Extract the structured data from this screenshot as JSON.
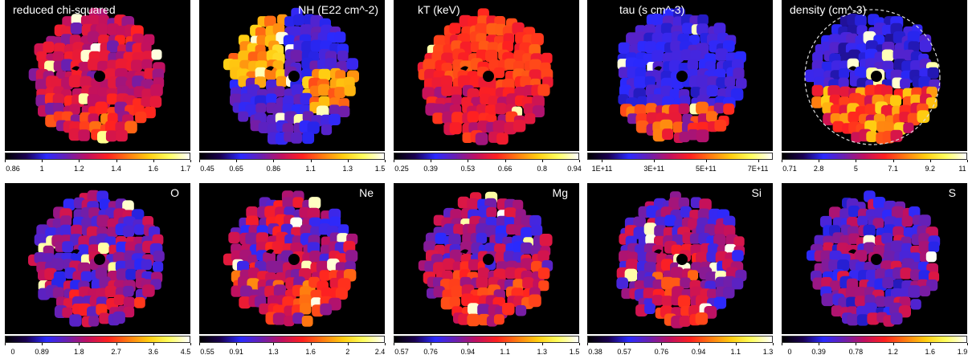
{
  "chart_data": {
    "type": "heatmap",
    "panels": [
      {
        "title": "reduced chi-squared",
        "title_align": "left",
        "ticks": [
          "0.86",
          "1",
          "1.2",
          "1.4",
          "1.6",
          "1.7"
        ],
        "profile": "chi",
        "seed": 11
      },
      {
        "title": "NH (E22 cm^-2)",
        "title_align": "right",
        "ticks": [
          "0.45",
          "0.65",
          "0.86",
          "1.1",
          "1.3",
          "1.5"
        ],
        "profile": "nh",
        "seed": 23
      },
      {
        "title": "kT (keV)",
        "title_align": "left",
        "ticks": [
          "0.25",
          "0.39",
          "0.53",
          "0.66",
          "0.8",
          "0.94"
        ],
        "profile": "kt",
        "seed": 37
      },
      {
        "title": "tau (s cm^-3)",
        "title_align": "left",
        "ticks": [
          "1E+11",
          "3E+11",
          "5E+11",
          "7E+11"
        ],
        "profile": "tau",
        "seed": 41
      },
      {
        "title": "density (cm^-3)",
        "title_align": "left",
        "ticks": [
          "0.71",
          "2.8",
          "5",
          "7.1",
          "9.2",
          "11"
        ],
        "profile": "density",
        "seed": 53,
        "dashed_circle": true
      },
      {
        "title": "O",
        "title_align": "right",
        "ticks": [
          "0",
          "0.89",
          "1.8",
          "2.7",
          "3.6",
          "4.5"
        ],
        "profile": "o",
        "seed": 61
      },
      {
        "title": "Ne",
        "title_align": "right",
        "ticks": [
          "0.55",
          "0.91",
          "1.3",
          "1.6",
          "2",
          "2.4"
        ],
        "profile": "ne",
        "seed": 71
      },
      {
        "title": "Mg",
        "title_align": "right",
        "ticks": [
          "0.57",
          "0.76",
          "0.94",
          "1.1",
          "1.3",
          "1.5"
        ],
        "profile": "mg",
        "seed": 83
      },
      {
        "title": "Si",
        "title_align": "right",
        "ticks": [
          "0.38",
          "0.57",
          "0.76",
          "0.94",
          "1.1",
          "1.3"
        ],
        "profile": "si",
        "seed": 97
      },
      {
        "title": "S",
        "title_align": "right",
        "ticks": [
          "0",
          "0.39",
          "0.78",
          "1.2",
          "1.6",
          "1.9"
        ],
        "profile": "s",
        "seed": 101
      }
    ],
    "colormap": [
      "#000000",
      "#1a0050",
      "#2a2aff",
      "#6a1fb0",
      "#c01060",
      "#ff2020",
      "#ff7a10",
      "#ffcc10",
      "#ffff60",
      "#ffffff"
    ]
  }
}
